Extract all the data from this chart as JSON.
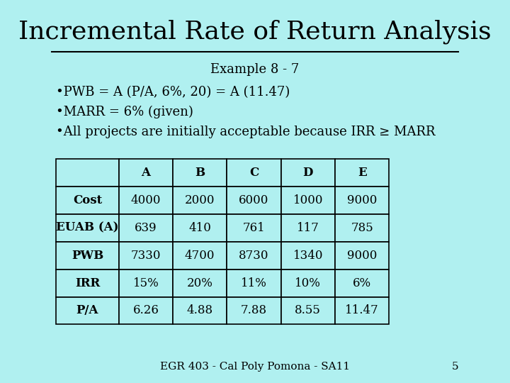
{
  "title": "Incremental Rate of Return Analysis",
  "background_color": "#b0f0f0",
  "subtitle": "Example 8 - 7",
  "bullets": [
    "PWB = A (P/A, 6%, 20) = A (11.47)",
    "MARR = 6% (given)",
    "All projects are initially acceptable because IRR ≥ MARR"
  ],
  "table_headers": [
    "",
    "A",
    "B",
    "C",
    "D",
    "E"
  ],
  "table_rows": [
    [
      "Cost",
      "4000",
      "2000",
      "6000",
      "1000",
      "9000"
    ],
    [
      "EUAB (A)",
      "639",
      "410",
      "761",
      "117",
      "785"
    ],
    [
      "PWB",
      "7330",
      "4700",
      "8730",
      "1340",
      "9000"
    ],
    [
      "IRR",
      "15%",
      "20%",
      "11%",
      "10%",
      "6%"
    ],
    [
      "P/A",
      "6.26",
      "4.88",
      "7.88",
      "8.55",
      "11.47"
    ]
  ],
  "footer": "EGR 403 - Cal Poly Pomona - SA11",
  "page_number": "5",
  "title_fontsize": 26,
  "subtitle_fontsize": 13,
  "bullet_fontsize": 13,
  "table_fontsize": 12,
  "footer_fontsize": 11
}
